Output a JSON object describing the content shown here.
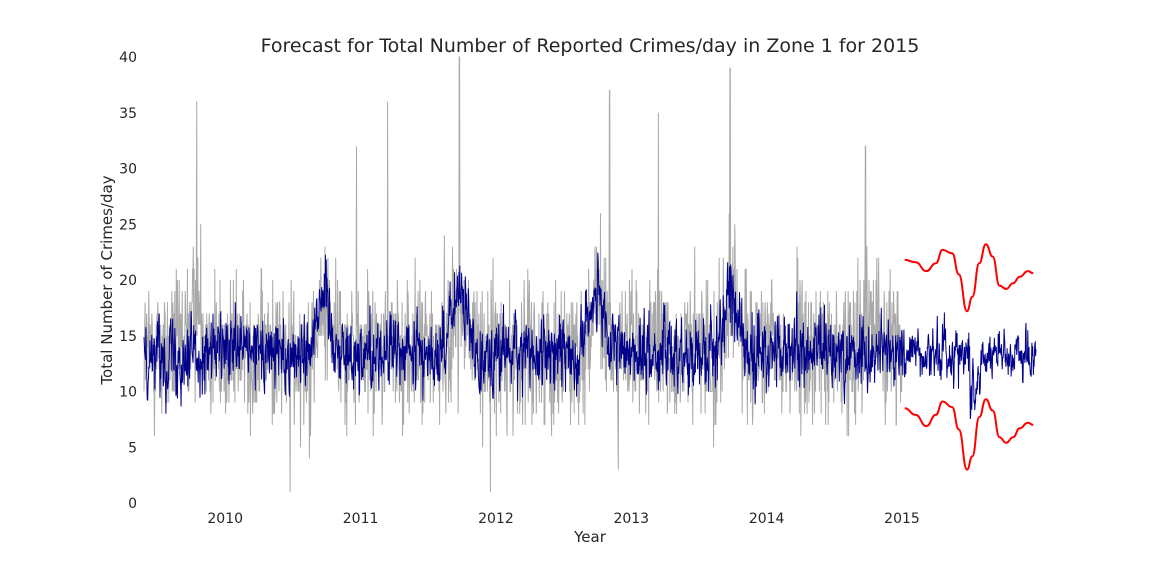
{
  "chart_data": {
    "type": "line",
    "title": "Forecast for Total Number of Reported Crimes/day in Zone 1 for 2015",
    "xlabel": "Year",
    "ylabel": "Total Number of Crimes/day",
    "xlim": [
      2009.4,
      2015.99
    ],
    "ylim": [
      0,
      40
    ],
    "x_ticks": [
      2010,
      2011,
      2012,
      2013,
      2014,
      2015
    ],
    "x_tick_labels": [
      "2010",
      "2011",
      "2012",
      "2013",
      "2014",
      "2015"
    ],
    "y_ticks": [
      0,
      5,
      10,
      15,
      20,
      25,
      30,
      35,
      40
    ],
    "y_tick_labels": [
      "0",
      "5",
      "10",
      "15",
      "20",
      "25",
      "30",
      "35",
      "40"
    ],
    "grid": false,
    "series": [
      {
        "role": "observed_daily",
        "color": "#a9a9a9",
        "x_range": [
          2009.4,
          2015.0
        ],
        "points": 2045,
        "approx_baseline": 13.5,
        "approx_spread": 4.5,
        "notable_peaks": [
          {
            "x": 2009.79,
            "y": 36
          },
          {
            "x": 2010.48,
            "y": 1
          },
          {
            "x": 2010.97,
            "y": 32
          },
          {
            "x": 2011.2,
            "y": 36
          },
          {
            "x": 2011.73,
            "y": 40
          },
          {
            "x": 2011.96,
            "y": 1
          },
          {
            "x": 2012.84,
            "y": 37
          },
          {
            "x": 2013.2,
            "y": 35
          },
          {
            "x": 2013.73,
            "y": 39
          },
          {
            "x": 2014.73,
            "y": 32
          }
        ],
        "seasonal_peaks_x": [
          2009.8,
          2010.75,
          2011.72,
          2012.75,
          2013.75,
          2014.75
        ]
      },
      {
        "role": "fitted_and_forecast_mean",
        "color": "#00008b",
        "x_range": [
          2009.4,
          2015.99
        ],
        "approx_baseline": 13.5,
        "seasonal_peaks": [
          {
            "x": 2010.72,
            "y": 25
          },
          {
            "x": 2011.73,
            "y": 26
          },
          {
            "x": 2012.73,
            "y": 23
          },
          {
            "x": 2013.73,
            "y": 25
          }
        ]
      },
      {
        "role": "forecast_upper_bound",
        "color": "#ff0000",
        "x": [
          2015.02,
          2015.1,
          2015.18,
          2015.25,
          2015.3,
          2015.37,
          2015.42,
          2015.48,
          2015.52,
          2015.57,
          2015.62,
          2015.67,
          2015.72,
          2015.77,
          2015.82,
          2015.87,
          2015.93,
          2015.97
        ],
        "y": [
          21.8,
          21.6,
          20.8,
          21.5,
          22.7,
          22.4,
          20.5,
          17.2,
          18.5,
          21.5,
          23.2,
          22.1,
          19.5,
          19.2,
          19.7,
          20.3,
          20.8,
          20.6
        ]
      },
      {
        "role": "forecast_lower_bound",
        "color": "#ff0000",
        "x": [
          2015.02,
          2015.1,
          2015.18,
          2015.25,
          2015.3,
          2015.37,
          2015.42,
          2015.48,
          2015.52,
          2015.57,
          2015.62,
          2015.67,
          2015.72,
          2015.77,
          2015.82,
          2015.87,
          2015.93,
          2015.97
        ],
        "y": [
          8.5,
          7.9,
          6.9,
          7.9,
          9.1,
          8.6,
          6.6,
          3.0,
          4.2,
          7.7,
          9.3,
          8.3,
          5.9,
          5.4,
          5.9,
          6.7,
          7.2,
          7.0
        ]
      }
    ]
  }
}
